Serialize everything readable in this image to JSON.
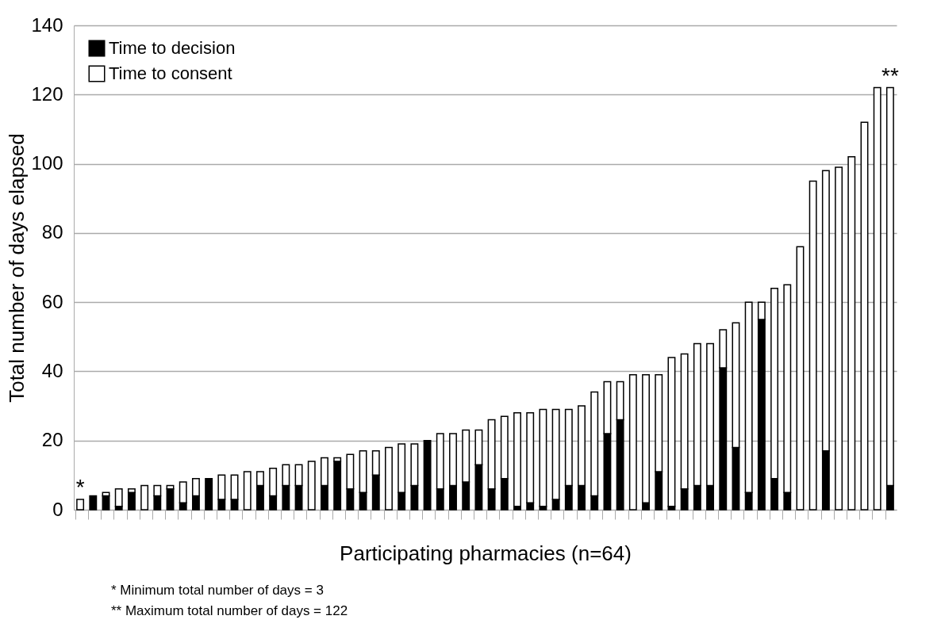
{
  "chart_data": {
    "type": "bar",
    "stacked": true,
    "categories": [
      null,
      null,
      null,
      null,
      null,
      null,
      null,
      null,
      null,
      null,
      null,
      null,
      null,
      null,
      null,
      null,
      null,
      null,
      null,
      null,
      null,
      null,
      null,
      null,
      null,
      null,
      null,
      null,
      null,
      null,
      null,
      null,
      null,
      null,
      null,
      null,
      null,
      null,
      null,
      null,
      null,
      null,
      null,
      null,
      null,
      null,
      null,
      null,
      null,
      null,
      null,
      null,
      null,
      null,
      null,
      null,
      null,
      null,
      null,
      null,
      null,
      null,
      null,
      null
    ],
    "series": [
      {
        "name": "Time to decision",
        "color": "#000000",
        "values": [
          0,
          4,
          4,
          1,
          5,
          0,
          4,
          6,
          2,
          4,
          9,
          3,
          3,
          0,
          7,
          4,
          7,
          7,
          0,
          7,
          14,
          6,
          5,
          10,
          0,
          5,
          7,
          20,
          6,
          7,
          8,
          13,
          6,
          9,
          1,
          2,
          1,
          3,
          7,
          7,
          4,
          22,
          26,
          0,
          2,
          11,
          1,
          6,
          7,
          7,
          41,
          18,
          5,
          55,
          9,
          5,
          0,
          0,
          17,
          0,
          0,
          0,
          0,
          7
        ]
      },
      {
        "name": "Time to consent",
        "color": "#ffffff",
        "values": [
          3,
          0,
          1,
          5,
          1,
          7,
          3,
          1,
          6,
          5,
          0,
          7,
          7,
          11,
          4,
          8,
          6,
          6,
          14,
          8,
          1,
          10,
          12,
          7,
          18,
          14,
          12,
          0,
          16,
          15,
          15,
          10,
          20,
          18,
          27,
          26,
          28,
          26,
          22,
          23,
          30,
          15,
          11,
          39,
          37,
          28,
          43,
          39,
          41,
          41,
          11,
          36,
          55,
          5,
          55,
          60,
          76,
          95,
          81,
          99,
          102,
          112,
          122,
          115
        ]
      }
    ],
    "xlabel": "Participating pharmacies (n=64)",
    "ylabel": "Total number of days elapsed",
    "ylim": [
      0,
      140
    ],
    "yticks": [
      0,
      20,
      40,
      60,
      80,
      100,
      120,
      140
    ],
    "grid": "y",
    "legend": "top left",
    "tick_labels": "y",
    "annotations": [
      {
        "text": "*",
        "y": 3
      },
      {
        "text": "**",
        "y": 122
      },
      "* Minimum total number of days = 3",
      "** Maximum total number of days = 122"
    ]
  }
}
